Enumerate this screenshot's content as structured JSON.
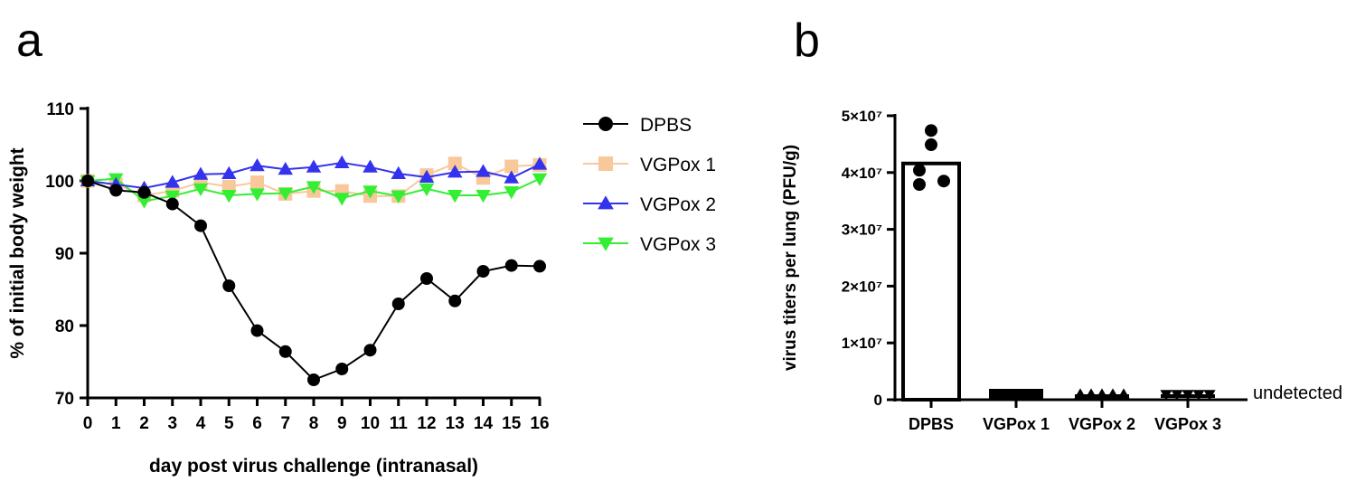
{
  "panels": {
    "a": "a",
    "b": "b"
  },
  "chart_data": [
    {
      "type": "line",
      "xlabel": "day post virus challenge (intranasal)",
      "ylabel": "% of initial body weight",
      "xlim": [
        0,
        16
      ],
      "ylim": [
        70,
        110
      ],
      "x": [
        0,
        1,
        2,
        3,
        4,
        5,
        6,
        7,
        8,
        9,
        10,
        11,
        12,
        13,
        14,
        15,
        16
      ],
      "xticks": [
        "0",
        "1",
        "2",
        "3",
        "4",
        "5",
        "6",
        "7",
        "8",
        "9",
        "10",
        "11",
        "12",
        "13",
        "14",
        "15",
        "16"
      ],
      "yticks": [
        "70",
        "80",
        "90",
        "100",
        "110"
      ],
      "legend_position": "right",
      "series": [
        {
          "name": "DPBS",
          "color": "#000000",
          "marker": "circle",
          "values": [
            100,
            98.7,
            98.4,
            96.8,
            93.8,
            85.5,
            79.3,
            76.4,
            72.5,
            74.0,
            76.6,
            83.0,
            86.5,
            83.4,
            87.5,
            88.3,
            88.2
          ]
        },
        {
          "name": "VGPox 1",
          "color": "#f8c89a",
          "marker": "square",
          "values": [
            100,
            99.5,
            98.0,
            98.6,
            99.8,
            99.2,
            99.8,
            98.2,
            98.6,
            98.6,
            97.9,
            97.9,
            100.8,
            102.4,
            100.4,
            102.0,
            102.2
          ]
        },
        {
          "name": "VGPox 2",
          "color": "#3333ee",
          "marker": "triangle-up",
          "values": [
            100,
            99.5,
            99.0,
            99.8,
            100.9,
            101.0,
            102.1,
            101.6,
            101.9,
            102.5,
            101.9,
            101.0,
            100.5,
            101.2,
            101.3,
            100.4,
            102.3
          ]
        },
        {
          "name": "VGPox 3",
          "color": "#33ee33",
          "marker": "triangle-down",
          "values": [
            100,
            100.3,
            97.2,
            97.9,
            98.9,
            98.0,
            98.2,
            98.3,
            99.2,
            97.6,
            98.6,
            97.9,
            98.9,
            98.0,
            98.0,
            98.5,
            100.3
          ]
        }
      ]
    },
    {
      "type": "bar",
      "ylabel": "virus titers per lung (PFU/g)",
      "ylim": [
        0,
        50000000
      ],
      "yticks": [
        "0",
        "1×10⁷",
        "2×10⁷",
        "3×10⁷",
        "4×10⁷",
        "5×10⁷"
      ],
      "categories": [
        "DPBS",
        "VGPox 1",
        "VGPox 2",
        "VGPox 3"
      ],
      "values": [
        41600000,
        0,
        0,
        0
      ],
      "points": [
        [
          47400000,
          44900000,
          40400000,
          37900000,
          38500000
        ],
        [
          0,
          0,
          0,
          0,
          0
        ],
        [
          0,
          0,
          0,
          0,
          0
        ],
        [
          0,
          0,
          0,
          0,
          0
        ]
      ],
      "markers": [
        "circle",
        "square",
        "triangle-up",
        "triangle-down"
      ],
      "annotation": "undetected"
    }
  ]
}
